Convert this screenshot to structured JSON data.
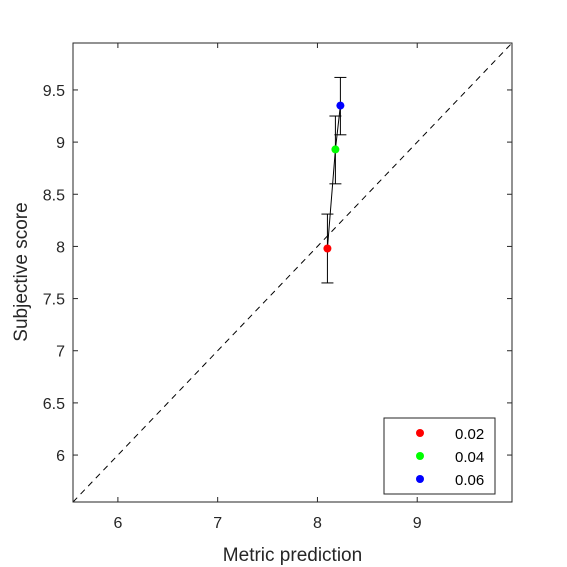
{
  "chart_data": {
    "type": "scatter",
    "title": "",
    "xlabel": "Metric prediction",
    "ylabel": "Subjective score",
    "xlim": [
      5.55,
      9.95
    ],
    "ylim": [
      5.55,
      9.95
    ],
    "xticks": [
      6,
      7,
      8,
      9
    ],
    "yticks": [
      6,
      6.5,
      7,
      7.5,
      8,
      8.5,
      9,
      9.5
    ],
    "xtick_labels": [
      "6",
      "7",
      "8",
      "9"
    ],
    "ytick_labels": [
      "6",
      "6.5",
      "7",
      "7.5",
      "8",
      "8.5",
      "9",
      "9.5"
    ],
    "grid": false,
    "reference_line": {
      "style": "dashed",
      "color": "#000000",
      "from": [
        5.55,
        5.55
      ],
      "to": [
        9.95,
        9.95
      ]
    },
    "connecting_line": {
      "color": "#000000"
    },
    "legend": {
      "position": "bottom-right"
    },
    "series": [
      {
        "name": "0.02",
        "color": "#ff0000",
        "x": 8.1,
        "y": 7.98,
        "err_low": 7.65,
        "err_high": 8.31
      },
      {
        "name": "0.04",
        "color": "#00ff00",
        "x": 8.18,
        "y": 8.93,
        "err_low": 8.6,
        "err_high": 9.25
      },
      {
        "name": "0.06",
        "color": "#0000ff",
        "x": 8.23,
        "y": 9.35,
        "err_low": 9.07,
        "err_high": 9.62
      }
    ]
  }
}
